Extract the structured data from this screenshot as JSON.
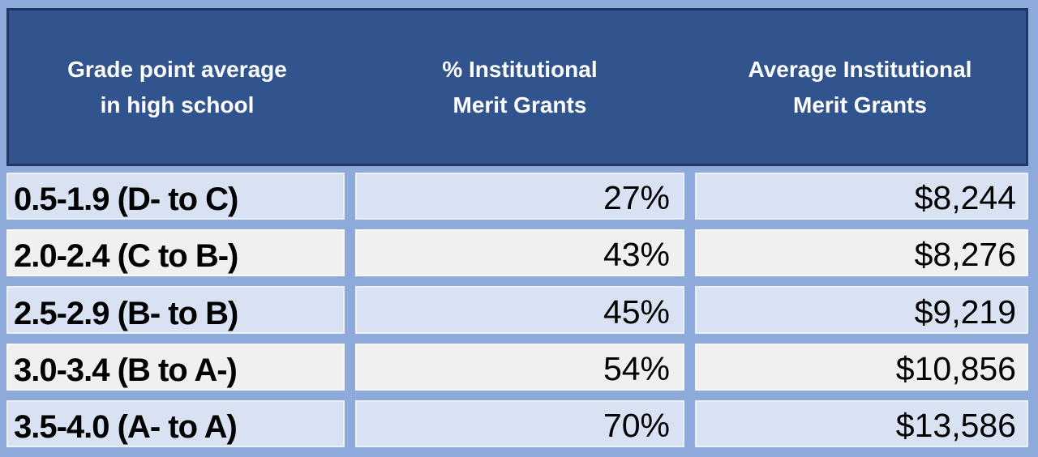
{
  "table": {
    "headers": [
      {
        "line1": "Grade point average",
        "line2": "in high school"
      },
      {
        "line1": "% Institutional",
        "line2": "Merit Grants"
      },
      {
        "line1": "Average Institutional",
        "line2": "Merit Grants"
      }
    ],
    "rows": [
      {
        "gpa": "0.5-1.9 (D- to C)",
        "pct": "27%",
        "amount": "$8,244"
      },
      {
        "gpa": "2.0-2.4 (C to B-)",
        "pct": "43%",
        "amount": "$8,276"
      },
      {
        "gpa": "2.5-2.9 (B- to B)",
        "pct": "45%",
        "amount": "$9,219"
      },
      {
        "gpa": "3.0-3.4 (B to A-)",
        "pct": "54%",
        "amount": "$10,856"
      },
      {
        "gpa": "3.5-4.0 (A- to A)",
        "pct": "70%",
        "amount": "$13,586"
      }
    ]
  },
  "colors": {
    "frame_background": "#8EAADB",
    "header_background": "#31548E",
    "header_border": "#1F3864",
    "header_text": "#FFFFFF",
    "row_blue": "#D9E2F3",
    "row_gray": "#F0F0F0",
    "body_text": "#000000"
  },
  "chart_data": {
    "type": "table",
    "title": "",
    "columns": [
      "Grade point average in high school",
      "% Institutional Merit Grants",
      "Average Institutional Merit Grants"
    ],
    "categories": [
      "0.5-1.9 (D- to C)",
      "2.0-2.4 (C to B-)",
      "2.5-2.9 (B- to B)",
      "3.0-3.4 (B to A-)",
      "3.5-4.0 (A- to A)"
    ],
    "series": [
      {
        "name": "% Institutional Merit Grants",
        "values": [
          27,
          43,
          45,
          54,
          70
        ],
        "unit": "%"
      },
      {
        "name": "Average Institutional Merit Grants",
        "values": [
          8244,
          8276,
          9219,
          10856,
          13586
        ],
        "unit": "USD"
      }
    ],
    "rows": [
      [
        "0.5-1.9 (D- to C)",
        "27%",
        "$8,244"
      ],
      [
        "2.0-2.4 (C to B-)",
        "43%",
        "$8,276"
      ],
      [
        "2.5-2.9 (B- to B)",
        "45%",
        "$9,219"
      ],
      [
        "3.0-3.4 (B to A-)",
        "54%",
        "$10,856"
      ],
      [
        "3.5-4.0 (A- to A)",
        "70%",
        "$13,586"
      ]
    ]
  }
}
